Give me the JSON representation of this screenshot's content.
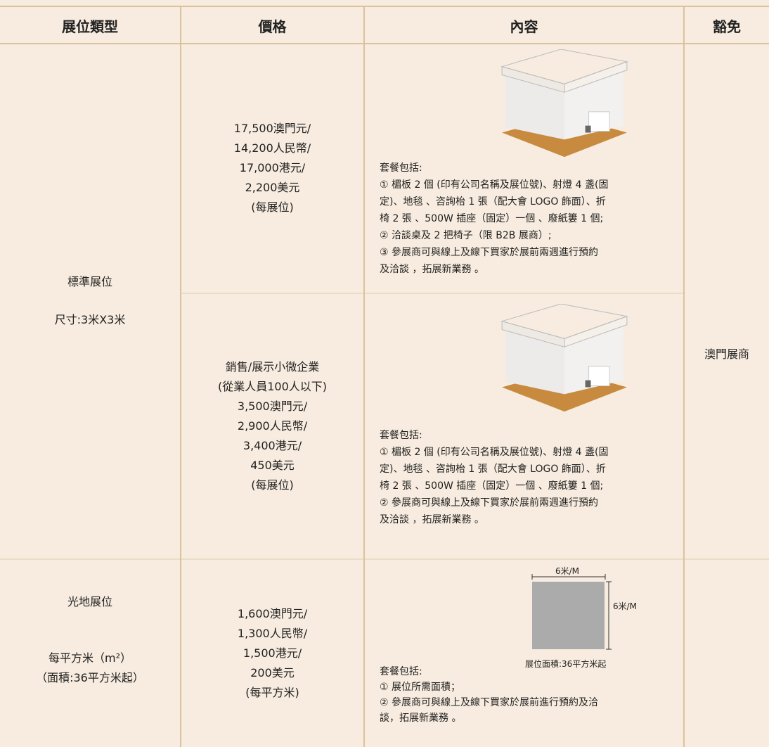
{
  "table": {
    "header": [
      "展位類型",
      "價格",
      "內容",
      "豁免"
    ],
    "standard": {
      "type": [
        "標準展位",
        "尺寸:3米X3米"
      ],
      "options": [
        {
          "price": [
            "17,500澳門元/",
            "14,200人民幣/",
            "17,000港元/",
            "2,200美元",
            "(每展位)"
          ],
          "content": [
            "套餐包括:",
            "① 楣板 2 個 (印有公司名稱及展位號)、射燈 4 盞(固",
            "定)、地毯 、咨詢枱 1 張（配大會 LOGO 飾面）、折",
            "椅 2 張 、500W 插座（固定）一個 、廢紙簍 1 個;",
            "② 洽談桌及 2 把椅子（限 B2B 展商）;",
            "③ 參展商可與線上及線下買家於展前兩週進行預約",
            "及洽談 ，拓展新業務 。"
          ]
        },
        {
          "price": [
            "銷售/展示小微企業",
            "(從業人員100人以下)",
            "3,500澳門元/",
            "2,900人民幣/",
            "3,400港元/",
            "450美元",
            "(每展位)"
          ],
          "content": [
            "套餐包括:",
            "① 楣板 2 個 (印有公司名稱及展位號)、射燈 4 盞(固",
            "定)、地毯 、咨詢枱 1 張（配大會 LOGO 飾面）、折",
            "椅 2 張 、500W 插座（固定）一個 、廢紙簍 1 個;",
            "② 參展商可與線上及線下買家於展前兩週進行預約",
            "及洽談 ，拓展新業務 。"
          ]
        }
      ]
    },
    "space": {
      "type": [
        "光地展位",
        "每平方米（m²）",
        "（面積:36平方米起）"
      ],
      "price": [
        "1,600澳門元/",
        "1,300人民幣/",
        "1,500港元/",
        "200美元",
        "(每平方米)"
      ],
      "content": [
        "套餐包括:",
        "① 展位所需面積；",
        "② 參展商可與線上及線下買家於展前進行預約及洽",
        "談，拓展新業務 。"
      ],
      "plan": {
        "width": "6米/M",
        "height": "6米/M",
        "area": "展位面積:36平方米起"
      }
    },
    "exemption": "澳門展商"
  }
}
